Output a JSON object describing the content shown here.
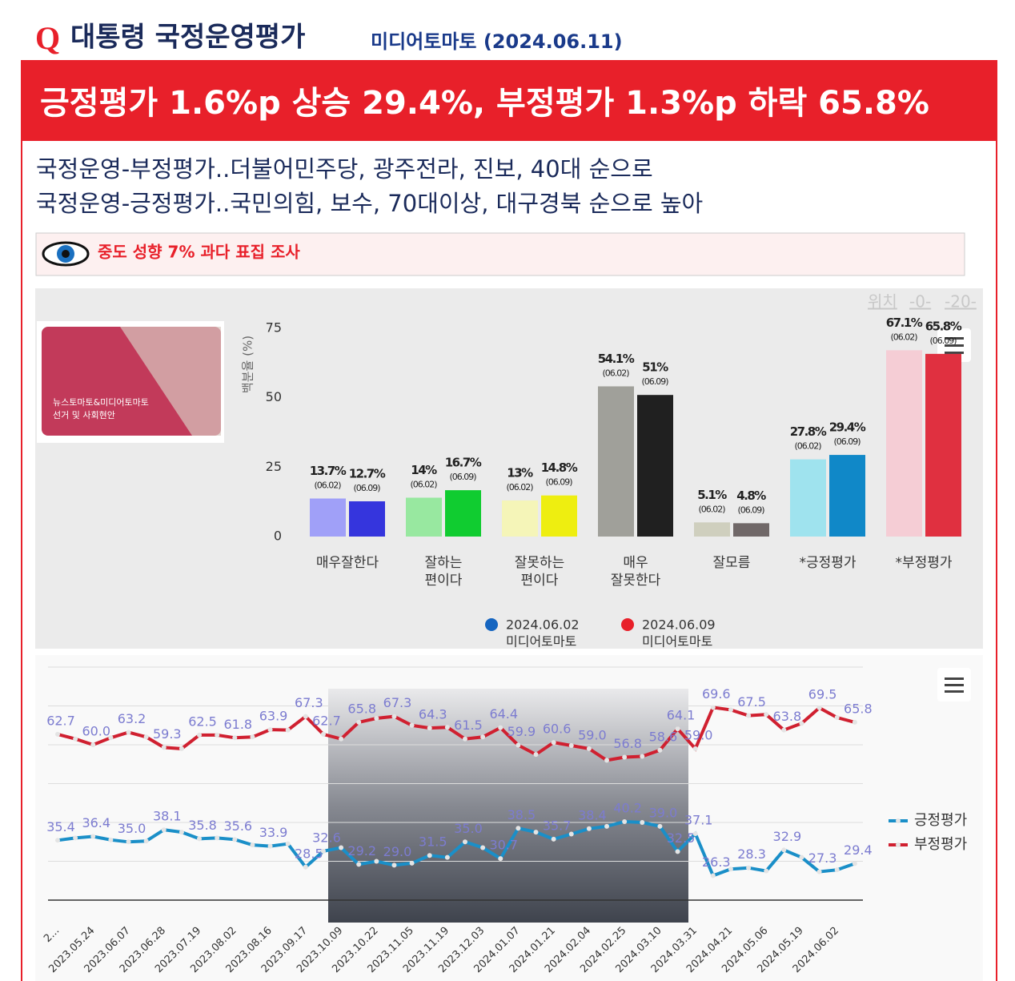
{
  "header": {
    "mark": "Q",
    "title": "대통령 국정운영평가",
    "source": "미디어토마토 (2024.06.11)"
  },
  "banner": "긍정평가 1.6%p 상승 29.4%, 부정평가 1.3%p 하락 65.8%",
  "lines": [
    "국정운영-부정평가..더불어민주당, 광주전라, 진보, 40대 순으로",
    "국정운영-긍정평가..국민의힘, 보수, 70대이상, 대구경북 순으로 높아"
  ],
  "notice": "중도 성향 7% 과다 표집 조사",
  "thumbnail": [
    "뉴스토마토&미디어토마토",
    "선거 및 사회현안"
  ],
  "nav": [
    "위치",
    "-0-",
    "-20-"
  ],
  "chart_data": [
    {
      "type": "bar",
      "ylabel": "백분율 (%)",
      "categories": [
        "매우잘한다",
        "잘하는 편이다",
        "잘못하는 편이다",
        "매우 잘못한다",
        "잘모름",
        "*긍정평가",
        "*부정평가"
      ],
      "ylim": [
        0,
        75
      ],
      "yticks": [
        0,
        25,
        50,
        75
      ],
      "series": [
        {
          "name": "2024.06.02",
          "source": "미디어토마토",
          "color": "#1565c0",
          "tag": "(06.02)",
          "colors": [
            "#a0a0f8",
            "#98e8a0",
            "#f5f5b8",
            "#a0a09a",
            "#cfcfbe",
            "#9fe3ee",
            "#f5cdd5"
          ],
          "values": [
            13.7,
            14,
            13,
            54.1,
            5.1,
            27.8,
            67.1
          ],
          "value_labels": [
            "13.7%",
            "14%",
            "13%",
            "54.1%",
            "5.1%",
            "27.8%",
            "67.1%"
          ]
        },
        {
          "name": "2024.06.09",
          "source": "미디어토마토",
          "color": "#e8202a",
          "tag": "(06.09)",
          "colors": [
            "#3535dd",
            "#10cc30",
            "#eeee10",
            "#202020",
            "#706868",
            "#1088c8",
            "#e03040"
          ],
          "values": [
            12.7,
            16.7,
            14.8,
            51,
            4.8,
            29.4,
            65.8
          ],
          "value_labels": [
            "12.7%",
            "16.7%",
            "14.8%",
            "51%",
            "4.8%",
            "29.4%",
            "65.8%"
          ]
        }
      ]
    },
    {
      "type": "line",
      "categories": [
        "2...",
        null,
        "2023.05.24",
        null,
        "2023.06.07",
        null,
        "2023.06.28",
        null,
        "2023.07.19",
        null,
        "2023.08.02",
        null,
        "2023.08.16",
        null,
        "2023.09.17",
        null,
        "2023.10.09",
        null,
        "2023.10.22",
        null,
        "2023.11.05",
        null,
        "2023.11.19",
        null,
        "2023.12.03",
        null,
        "2024.01.07",
        null,
        "2024.01.21",
        null,
        "2024.02.04",
        null,
        "2024.02.25",
        null,
        "2024.03.10",
        null,
        "2024.03.31",
        null,
        "2024.04.21",
        null,
        "2024.05.06",
        null,
        "2024.05.19",
        null,
        "2024.06.02",
        null
      ],
      "ylim": [
        20,
        80
      ],
      "yticks": [
        20,
        30,
        40,
        50,
        60,
        70,
        80
      ],
      "show_ytick_labels": false,
      "grid": true,
      "legend": "right",
      "series": [
        {
          "name": "긍정평가",
          "color": "#1a8fc8",
          "values": [
            35.4,
            36.0,
            36.4,
            35.5,
            35.0,
            35.2,
            38.1,
            37.5,
            35.8,
            36.0,
            35.6,
            34.2,
            33.9,
            34.5,
            28.5,
            32.6,
            33.5,
            29.2,
            30.0,
            29.0,
            29.5,
            31.5,
            31.0,
            35.0,
            33.5,
            30.7,
            38.5,
            37.5,
            35.7,
            37.0,
            38.4,
            39.0,
            40.2,
            40.0,
            39.0,
            32.5,
            37.1,
            26.3,
            28.0,
            28.3,
            27.5,
            32.9,
            31.0,
            27.3,
            27.8,
            29.4
          ],
          "value_labels": [
            "35.4",
            null,
            "36.4",
            null,
            "35.0",
            null,
            "38.1",
            null,
            "35.8",
            null,
            "35.6",
            null,
            "33.9",
            null,
            "28.5",
            "32.6",
            null,
            "29.2",
            null,
            "29.0",
            null,
            "31.5",
            null,
            "35.0",
            null,
            "30.7",
            "38.5",
            null,
            "35.7",
            null,
            "38.4",
            null,
            "40.2",
            null,
            "39.0",
            "32.5",
            "37.1",
            "26.3",
            null,
            "28.3",
            null,
            "32.9",
            null,
            "27.3",
            null,
            "29.4"
          ]
        },
        {
          "name": "부정평가",
          "color": "#d02030",
          "values": [
            62.7,
            61.5,
            60.0,
            61.8,
            63.2,
            62.0,
            59.3,
            59.0,
            62.5,
            62.5,
            61.8,
            62.0,
            63.9,
            63.8,
            67.3,
            62.7,
            61.5,
            65.8,
            66.8,
            67.3,
            65.0,
            64.3,
            64.5,
            61.5,
            62.0,
            64.4,
            59.9,
            57.5,
            60.6,
            59.8,
            59.0,
            56.0,
            56.8,
            57.0,
            58.6,
            64.1,
            59.0,
            69.6,
            69.0,
            67.5,
            67.8,
            63.8,
            65.5,
            69.5,
            67.0,
            65.8
          ],
          "value_labels": [
            "62.7",
            null,
            "60.0",
            null,
            "63.2",
            null,
            "59.3",
            null,
            "62.5",
            null,
            "61.8",
            null,
            "63.9",
            null,
            "67.3",
            "62.7",
            null,
            "65.8",
            null,
            "67.3",
            null,
            "64.3",
            null,
            "61.5",
            null,
            "64.4",
            "59.9",
            null,
            "60.6",
            null,
            "59.0",
            null,
            "56.8",
            null,
            "58.6",
            "64.1",
            "59.0",
            "69.6",
            null,
            "67.5",
            null,
            "63.8",
            null,
            "69.5",
            null,
            "65.8"
          ]
        }
      ]
    }
  ]
}
